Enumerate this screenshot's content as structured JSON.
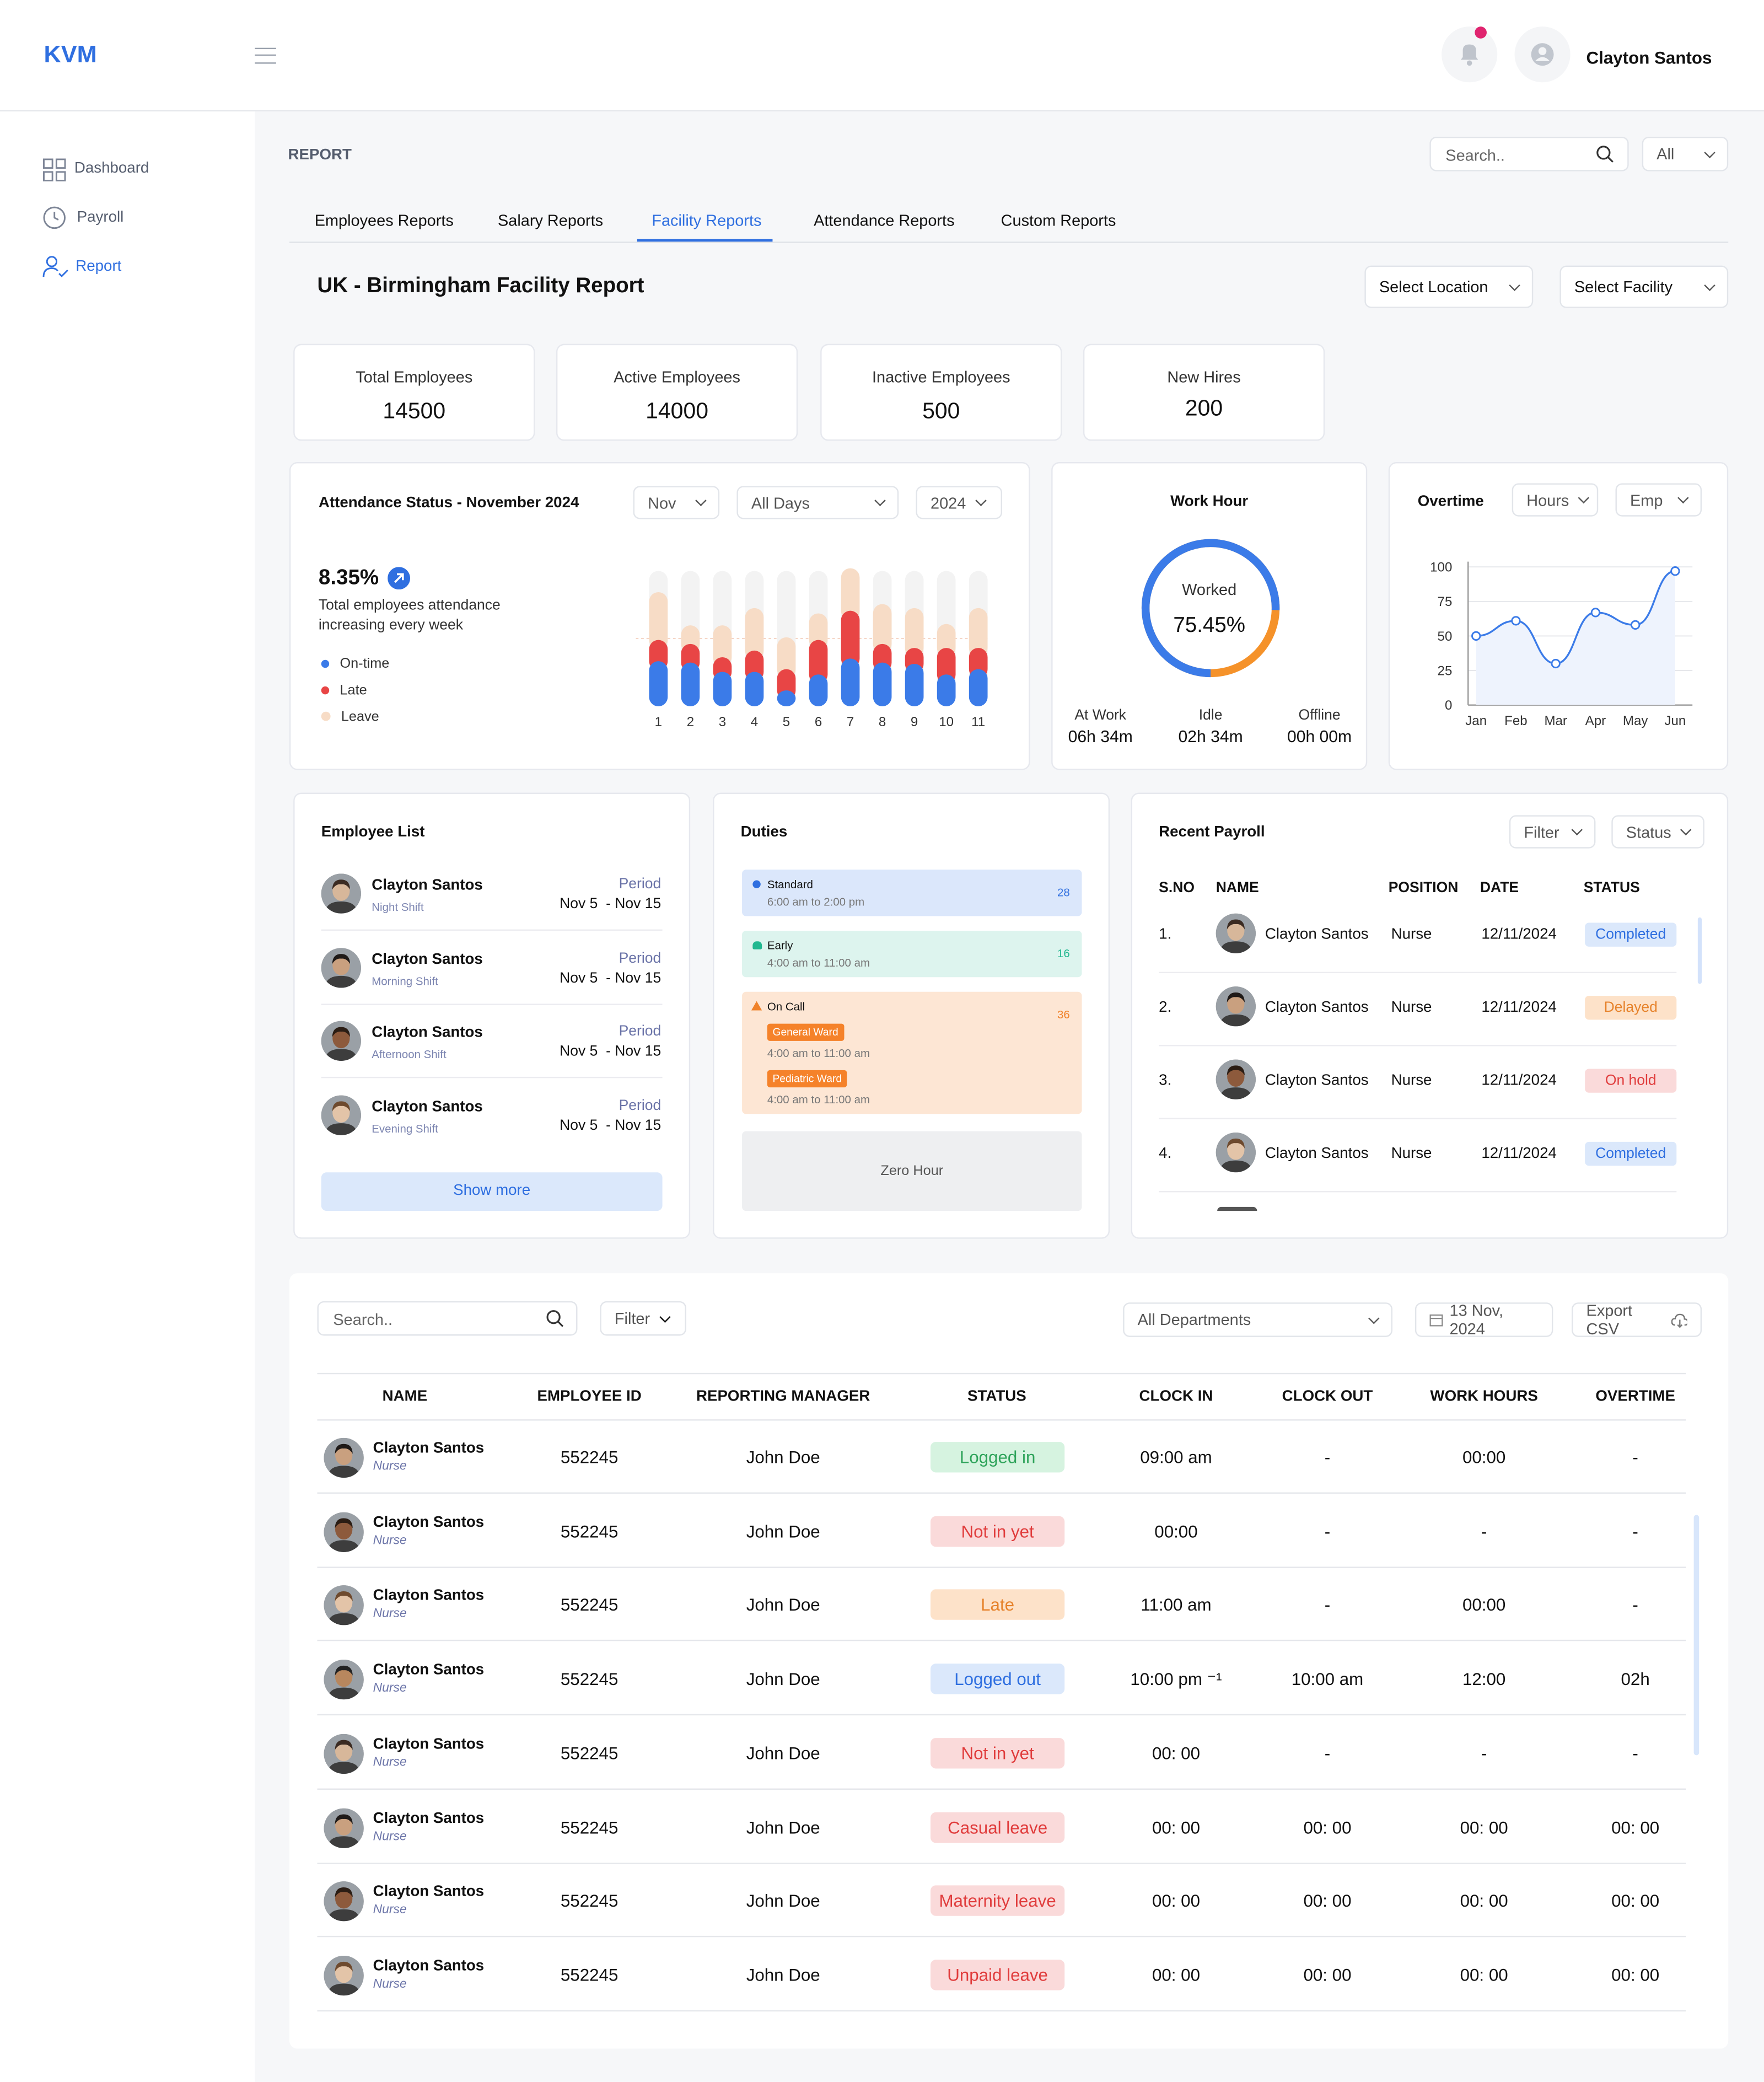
{
  "app": {
    "logo": "KVM",
    "user_name": "Clayton Santos"
  },
  "sidebar": {
    "items": [
      {
        "label": "Dashboard"
      },
      {
        "label": "Payroll"
      },
      {
        "label": "Report"
      }
    ]
  },
  "page": {
    "section": "REPORT",
    "search_placeholder": "Search..",
    "search_scope": "All",
    "tabs": [
      "Employees Reports",
      "Salary Reports",
      "Facility Reports",
      "Attendance Reports",
      "Custom Reports"
    ],
    "title": "UK - Birmingham Facility Report",
    "location_select": "Select Location",
    "facility_select": "Select Facility"
  },
  "stats": [
    {
      "label": "Total Employees",
      "value": "14500"
    },
    {
      "label": "Active Employees",
      "value": "14000"
    },
    {
      "label": "Inactive Employees",
      "value": "500"
    },
    {
      "label": "New Hires",
      "value": "200"
    }
  ],
  "attendance": {
    "title": "Attendance Status - November 2024",
    "month": "Nov",
    "days": "All Days",
    "year": "2024",
    "rate": "8.35%",
    "desc1": "Total employees attendance",
    "desc2": "increasing every week",
    "legend": [
      "On-time",
      "Late",
      "Leave"
    ],
    "colors": {
      "ontime": "#3b7be8",
      "late": "#e84545",
      "leave": "#f7dcc6",
      "track": "#f3f3f3"
    },
    "chart_data": {
      "type": "bar",
      "categories": [
        "1",
        "2",
        "3",
        "4",
        "5",
        "6",
        "7",
        "8",
        "9",
        "10",
        "11"
      ],
      "series": [
        {
          "name": "On-time",
          "values": [
            34,
            33,
            26,
            26,
            12,
            24,
            36,
            33,
            32,
            24,
            28
          ]
        },
        {
          "name": "Late",
          "values": [
            16,
            14,
            11,
            16,
            16,
            26,
            36,
            14,
            12,
            20,
            16
          ]
        },
        {
          "name": "Leave",
          "values": [
            36,
            14,
            24,
            32,
            24,
            20,
            32,
            30,
            30,
            18,
            30
          ]
        }
      ],
      "ymax": 102
    }
  },
  "work_hour": {
    "title": "Work Hour",
    "center_label": "Worked",
    "center_value": "75.45%",
    "worked_fraction": 0.7545,
    "colors": {
      "worked": "#3b7be8",
      "rest": "#f5922a"
    },
    "stats": [
      {
        "label": "At Work",
        "value": "06h 34m"
      },
      {
        "label": "Idle",
        "value": "02h 34m"
      },
      {
        "label": "Offline",
        "value": "00h 00m"
      }
    ]
  },
  "overtime": {
    "title": "Overtime",
    "unit_select": "Hours",
    "emp_select": "Emp",
    "chart_data": {
      "type": "line",
      "x": [
        "Jan",
        "Feb",
        "Mar",
        "Apr",
        "May",
        "Jun"
      ],
      "y": [
        50,
        61,
        30,
        67,
        58,
        97
      ],
      "yticks": [
        0,
        25,
        50,
        75,
        100
      ],
      "ylim": [
        0,
        100
      ]
    }
  },
  "employee_list": {
    "title": "Employee List",
    "period_label": "Period",
    "show_more": "Show more",
    "items": [
      {
        "name": "Clayton Santos",
        "shift": "Night Shift",
        "period": "Nov 5  - Nov 15"
      },
      {
        "name": "Clayton Santos",
        "shift": "Morning Shift",
        "period": "Nov 5  - Nov 15"
      },
      {
        "name": "Clayton Santos",
        "shift": "Afternoon Shift",
        "period": "Nov 5  - Nov 15"
      },
      {
        "name": "Clayton Santos",
        "shift": "Evening Shift",
        "period": "Nov 5  - Nov 15"
      }
    ]
  },
  "duties": {
    "title": "Duties",
    "standard": {
      "label": "Standard",
      "time": "6:00 am to 2:00 pm",
      "count": "28"
    },
    "early": {
      "label": "Early",
      "time": "4:00 am to 11:00 am",
      "count": "16"
    },
    "oncall": {
      "label": "On Call",
      "count": "36",
      "wards": [
        {
          "name": "General Ward",
          "time": "4:00 am to 11:00 am"
        },
        {
          "name": "Pediatric Ward",
          "time": "4:00 am to 11:00 am"
        }
      ]
    },
    "zero": "Zero Hour"
  },
  "payroll": {
    "title": "Recent Payroll",
    "filter": "Filter",
    "status_select": "Status",
    "headers": [
      "S.NO",
      "NAME",
      "POSITION",
      "DATE",
      "STATUS"
    ],
    "rows": [
      {
        "sno": "1.",
        "name": "Clayton Santos",
        "position": "Nurse",
        "date": "12/11/2024",
        "status": "Completed"
      },
      {
        "sno": "2.",
        "name": "Clayton Santos",
        "position": "Nurse",
        "date": "12/11/2024",
        "status": "Delayed"
      },
      {
        "sno": "3.",
        "name": "Clayton Santos",
        "position": "Nurse",
        "date": "12/11/2024",
        "status": "On hold"
      },
      {
        "sno": "4.",
        "name": "Clayton Santos",
        "position": "Nurse",
        "date": "12/11/2024",
        "status": "Completed"
      }
    ]
  },
  "table": {
    "search_placeholder": "Search..",
    "filter": "Filter",
    "departments": "All Departments",
    "date": "13 Nov, 2024",
    "export": "Export CSV",
    "headers": [
      "NAME",
      "EMPLOYEE ID",
      "REPORTING MANAGER",
      "STATUS",
      "CLOCK IN",
      "CLOCK OUT",
      "WORK HOURS",
      "OVERTIME"
    ],
    "rows": [
      {
        "name": "Clayton Santos",
        "role": "Nurse",
        "id": "552245",
        "manager": "John Doe",
        "status": "Logged in",
        "in": "09:00 am",
        "out": "-",
        "hours": "00:00",
        "ot": "-"
      },
      {
        "name": "Clayton Santos",
        "role": "Nurse",
        "id": "552245",
        "manager": "John Doe",
        "status": "Not in yet",
        "in": "00:00",
        "out": "-",
        "hours": "-",
        "ot": "-"
      },
      {
        "name": "Clayton Santos",
        "role": "Nurse",
        "id": "552245",
        "manager": "John Doe",
        "status": "Late",
        "in": "11:00 am",
        "out": "-",
        "hours": "00:00",
        "ot": "-"
      },
      {
        "name": "Clayton Santos",
        "role": "Nurse",
        "id": "552245",
        "manager": "John Doe",
        "status": "Logged out",
        "in": "10:00 pm ⁻¹",
        "out": "10:00 am",
        "hours": "12:00",
        "ot": "02h"
      },
      {
        "name": "Clayton Santos",
        "role": "Nurse",
        "id": "552245",
        "manager": "John Doe",
        "status": "Not in yet",
        "in": "00: 00",
        "out": "-",
        "hours": "-",
        "ot": "-"
      },
      {
        "name": "Clayton Santos",
        "role": "Nurse",
        "id": "552245",
        "manager": "John Doe",
        "status": "Casual leave",
        "in": "00: 00",
        "out": "00: 00",
        "hours": "00: 00",
        "ot": "00: 00"
      },
      {
        "name": "Clayton Santos",
        "role": "Nurse",
        "id": "552245",
        "manager": "John Doe",
        "status": "Maternity leave",
        "in": "00: 00",
        "out": "00: 00",
        "hours": "00: 00",
        "ot": "00: 00"
      },
      {
        "name": "Clayton Santos",
        "role": "Nurse",
        "id": "552245",
        "manager": "John Doe",
        "status": "Unpaid leave",
        "in": "00: 00",
        "out": "00: 00",
        "hours": "00: 00",
        "ot": "00: 00"
      }
    ]
  }
}
